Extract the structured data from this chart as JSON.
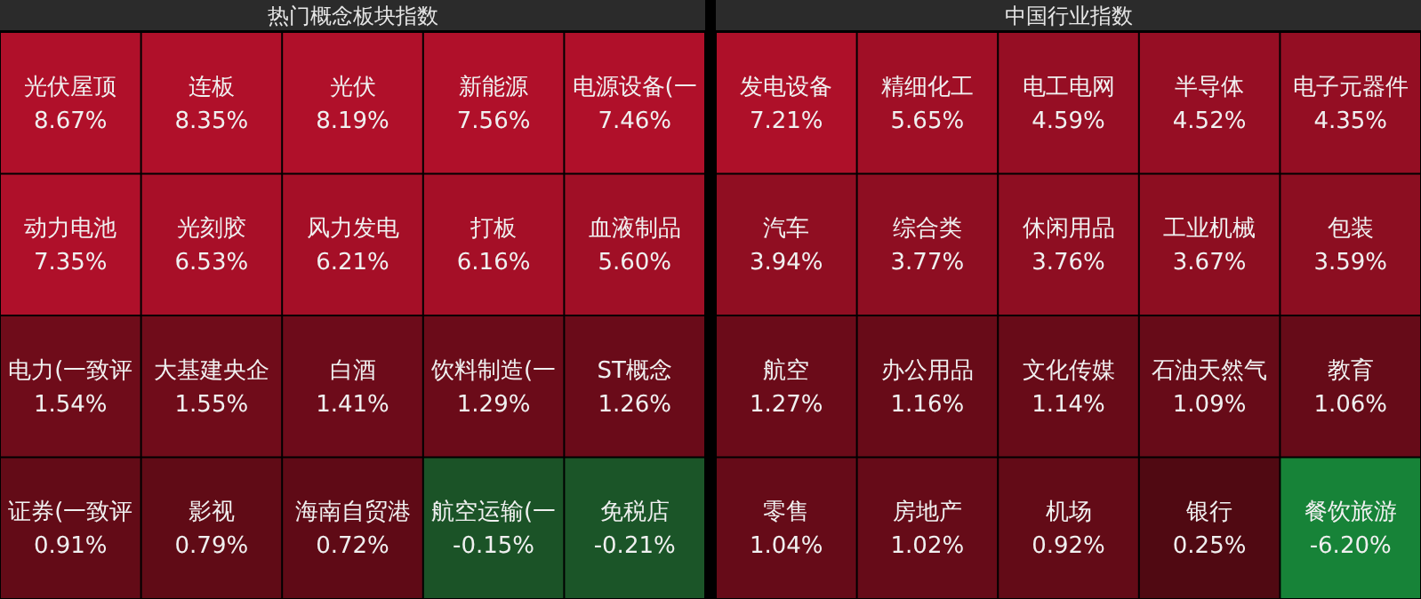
{
  "chart_data": [
    {
      "type": "other",
      "title": "热门概念板块指数",
      "categories": [
        "光伏屋顶",
        "连板",
        "光伏",
        "新能源",
        "电源设备(一",
        "动力电池",
        "光刻胶",
        "风力发电",
        "打板",
        "血液制品",
        "电力(一致评",
        "大基建央企",
        "白酒",
        "饮料制造(一",
        "ST概念",
        "证券(一致评",
        "影视",
        "海南自贸港",
        "航空运输(一",
        "免税店"
      ],
      "values": [
        8.67,
        8.35,
        8.19,
        7.56,
        7.46,
        7.35,
        6.53,
        6.21,
        6.16,
        5.6,
        1.54,
        1.55,
        1.41,
        1.29,
        1.26,
        0.91,
        0.79,
        0.72,
        -0.15,
        -0.21
      ],
      "value_labels": [
        "8.67%",
        "8.35%",
        "8.19%",
        "7.56%",
        "7.46%",
        "7.35%",
        "6.53%",
        "6.21%",
        "6.16%",
        "5.60%",
        "1.54%",
        "1.55%",
        "1.41%",
        "1.29%",
        "1.26%",
        "0.91%",
        "0.79%",
        "0.72%",
        "-0.15%",
        "-0.21%"
      ]
    },
    {
      "type": "other",
      "title": "中国行业指数",
      "categories": [
        "发电设备",
        "精细化工",
        "电工电网",
        "半导体",
        "电子元器件",
        "汽车",
        "综合类",
        "休闲用品",
        "工业机械",
        "包装",
        "航空",
        "办公用品",
        "文化传媒",
        "石油天然气",
        "教育",
        "零售",
        "房地产",
        "机场",
        "银行",
        "餐饮旅游"
      ],
      "values": [
        7.21,
        5.65,
        4.59,
        4.52,
        4.35,
        3.94,
        3.77,
        3.76,
        3.67,
        3.59,
        1.27,
        1.16,
        1.14,
        1.09,
        1.06,
        1.04,
        1.02,
        0.92,
        0.25,
        -6.2
      ],
      "value_labels": [
        "7.21%",
        "5.65%",
        "4.59%",
        "4.52%",
        "4.35%",
        "3.94%",
        "3.77%",
        "3.76%",
        "3.67%",
        "3.59%",
        "1.27%",
        "1.16%",
        "1.14%",
        "1.09%",
        "1.06%",
        "1.04%",
        "1.02%",
        "0.92%",
        "0.25%",
        "-6.20%"
      ]
    }
  ]
}
